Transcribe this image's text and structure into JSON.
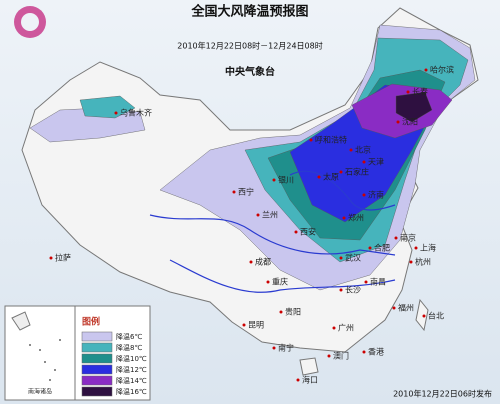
{
  "title": "全国大风降温预报图",
  "period": "2010年12月22日08时－12月24日08时",
  "issuer": "中央气象台",
  "legend": {
    "title": "图例",
    "items": [
      {
        "label": "降温6℃",
        "color": "#c9c6ee"
      },
      {
        "label": "降温8℃",
        "color": "#46b4bc"
      },
      {
        "label": "降温10℃",
        "color": "#1f8f8c"
      },
      {
        "label": "降温12℃",
        "color": "#2a2ee0"
      },
      {
        "label": "降温14℃",
        "color": "#8a2cc4"
      },
      {
        "label": "降温16℃",
        "color": "#2e1040"
      }
    ]
  },
  "inset_label": "南海诸岛",
  "cities": [
    "乌鲁木齐",
    "拉萨",
    "西宁",
    "兰州",
    "银川",
    "呼和浩特",
    "太原",
    "石家庄",
    "北京",
    "天津",
    "济南",
    "郑州",
    "西安",
    "成都",
    "重庆",
    "武汉",
    "合肥",
    "南京",
    "上海",
    "杭州",
    "长沙",
    "南昌",
    "福州",
    "台北",
    "贵阳",
    "昆明",
    "南宁",
    "广州",
    "香港",
    "澳门",
    "海口",
    "沈阳",
    "长春",
    "哈尔滨"
  ],
  "footer": "2010年12月22日06时发布"
}
